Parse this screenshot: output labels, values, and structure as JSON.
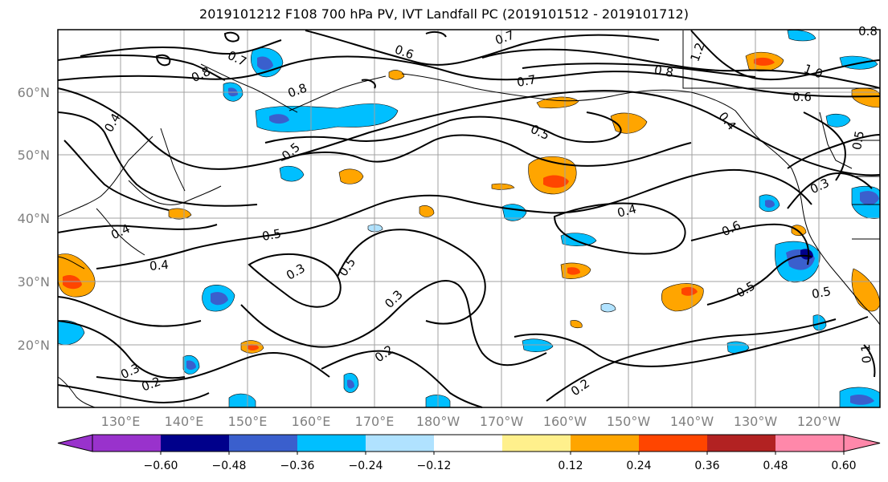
{
  "title": "2019101212 F108 700 hPa PV, IVT Landfall PC (2019101512 - 2019101712)",
  "lat_labels": [
    "20°N",
    "30°N",
    "40°N",
    "50°N",
    "60°N"
  ],
  "lon_labels": [
    "130°E",
    "140°E",
    "150°E",
    "160°E",
    "170°E",
    "180°W",
    "170°W",
    "160°W",
    "150°W",
    "140°W",
    "130°W",
    "120°W"
  ],
  "contour_labels": [
    "0.7",
    "0.6",
    "0.7",
    "0.8",
    "0.8",
    "0.4",
    "0.7",
    "0.8",
    "1.2",
    "1.0",
    "0.6",
    "0.4",
    "0.5",
    "0.5",
    "0.5",
    "0.4",
    "0.3",
    "0.6",
    "0.4",
    "0.5",
    "0.3",
    "0.5",
    "0.4",
    "0.3",
    "0.5",
    "0.5",
    "0.3",
    "0.2",
    "0.2",
    "0.2",
    "0.1",
    "0.8"
  ],
  "colorbar": {
    "ticks": [
      "−0.60",
      "−0.48",
      "−0.36",
      "−0.24",
      "−0.12",
      "0.12",
      "0.24",
      "0.36",
      "0.48",
      "0.60"
    ],
    "colors": [
      "#9932cc",
      "#00008b",
      "#3a5fcd",
      "#00bfff",
      "#b0e2ff",
      "#ffffff",
      "#fff08c",
      "#ffa500",
      "#ff4500",
      "#b22222",
      "#ff88aa",
      "#ff88aa"
    ]
  },
  "colors": {
    "neg_light": "#b0e2ff",
    "neg_mid": "#00bfff",
    "neg_strong": "#3a5fcd",
    "neg_darkest": "#00008b",
    "pos_light": "#fff08c",
    "pos_mid": "#ffa500",
    "pos_strong": "#ff4500"
  }
}
